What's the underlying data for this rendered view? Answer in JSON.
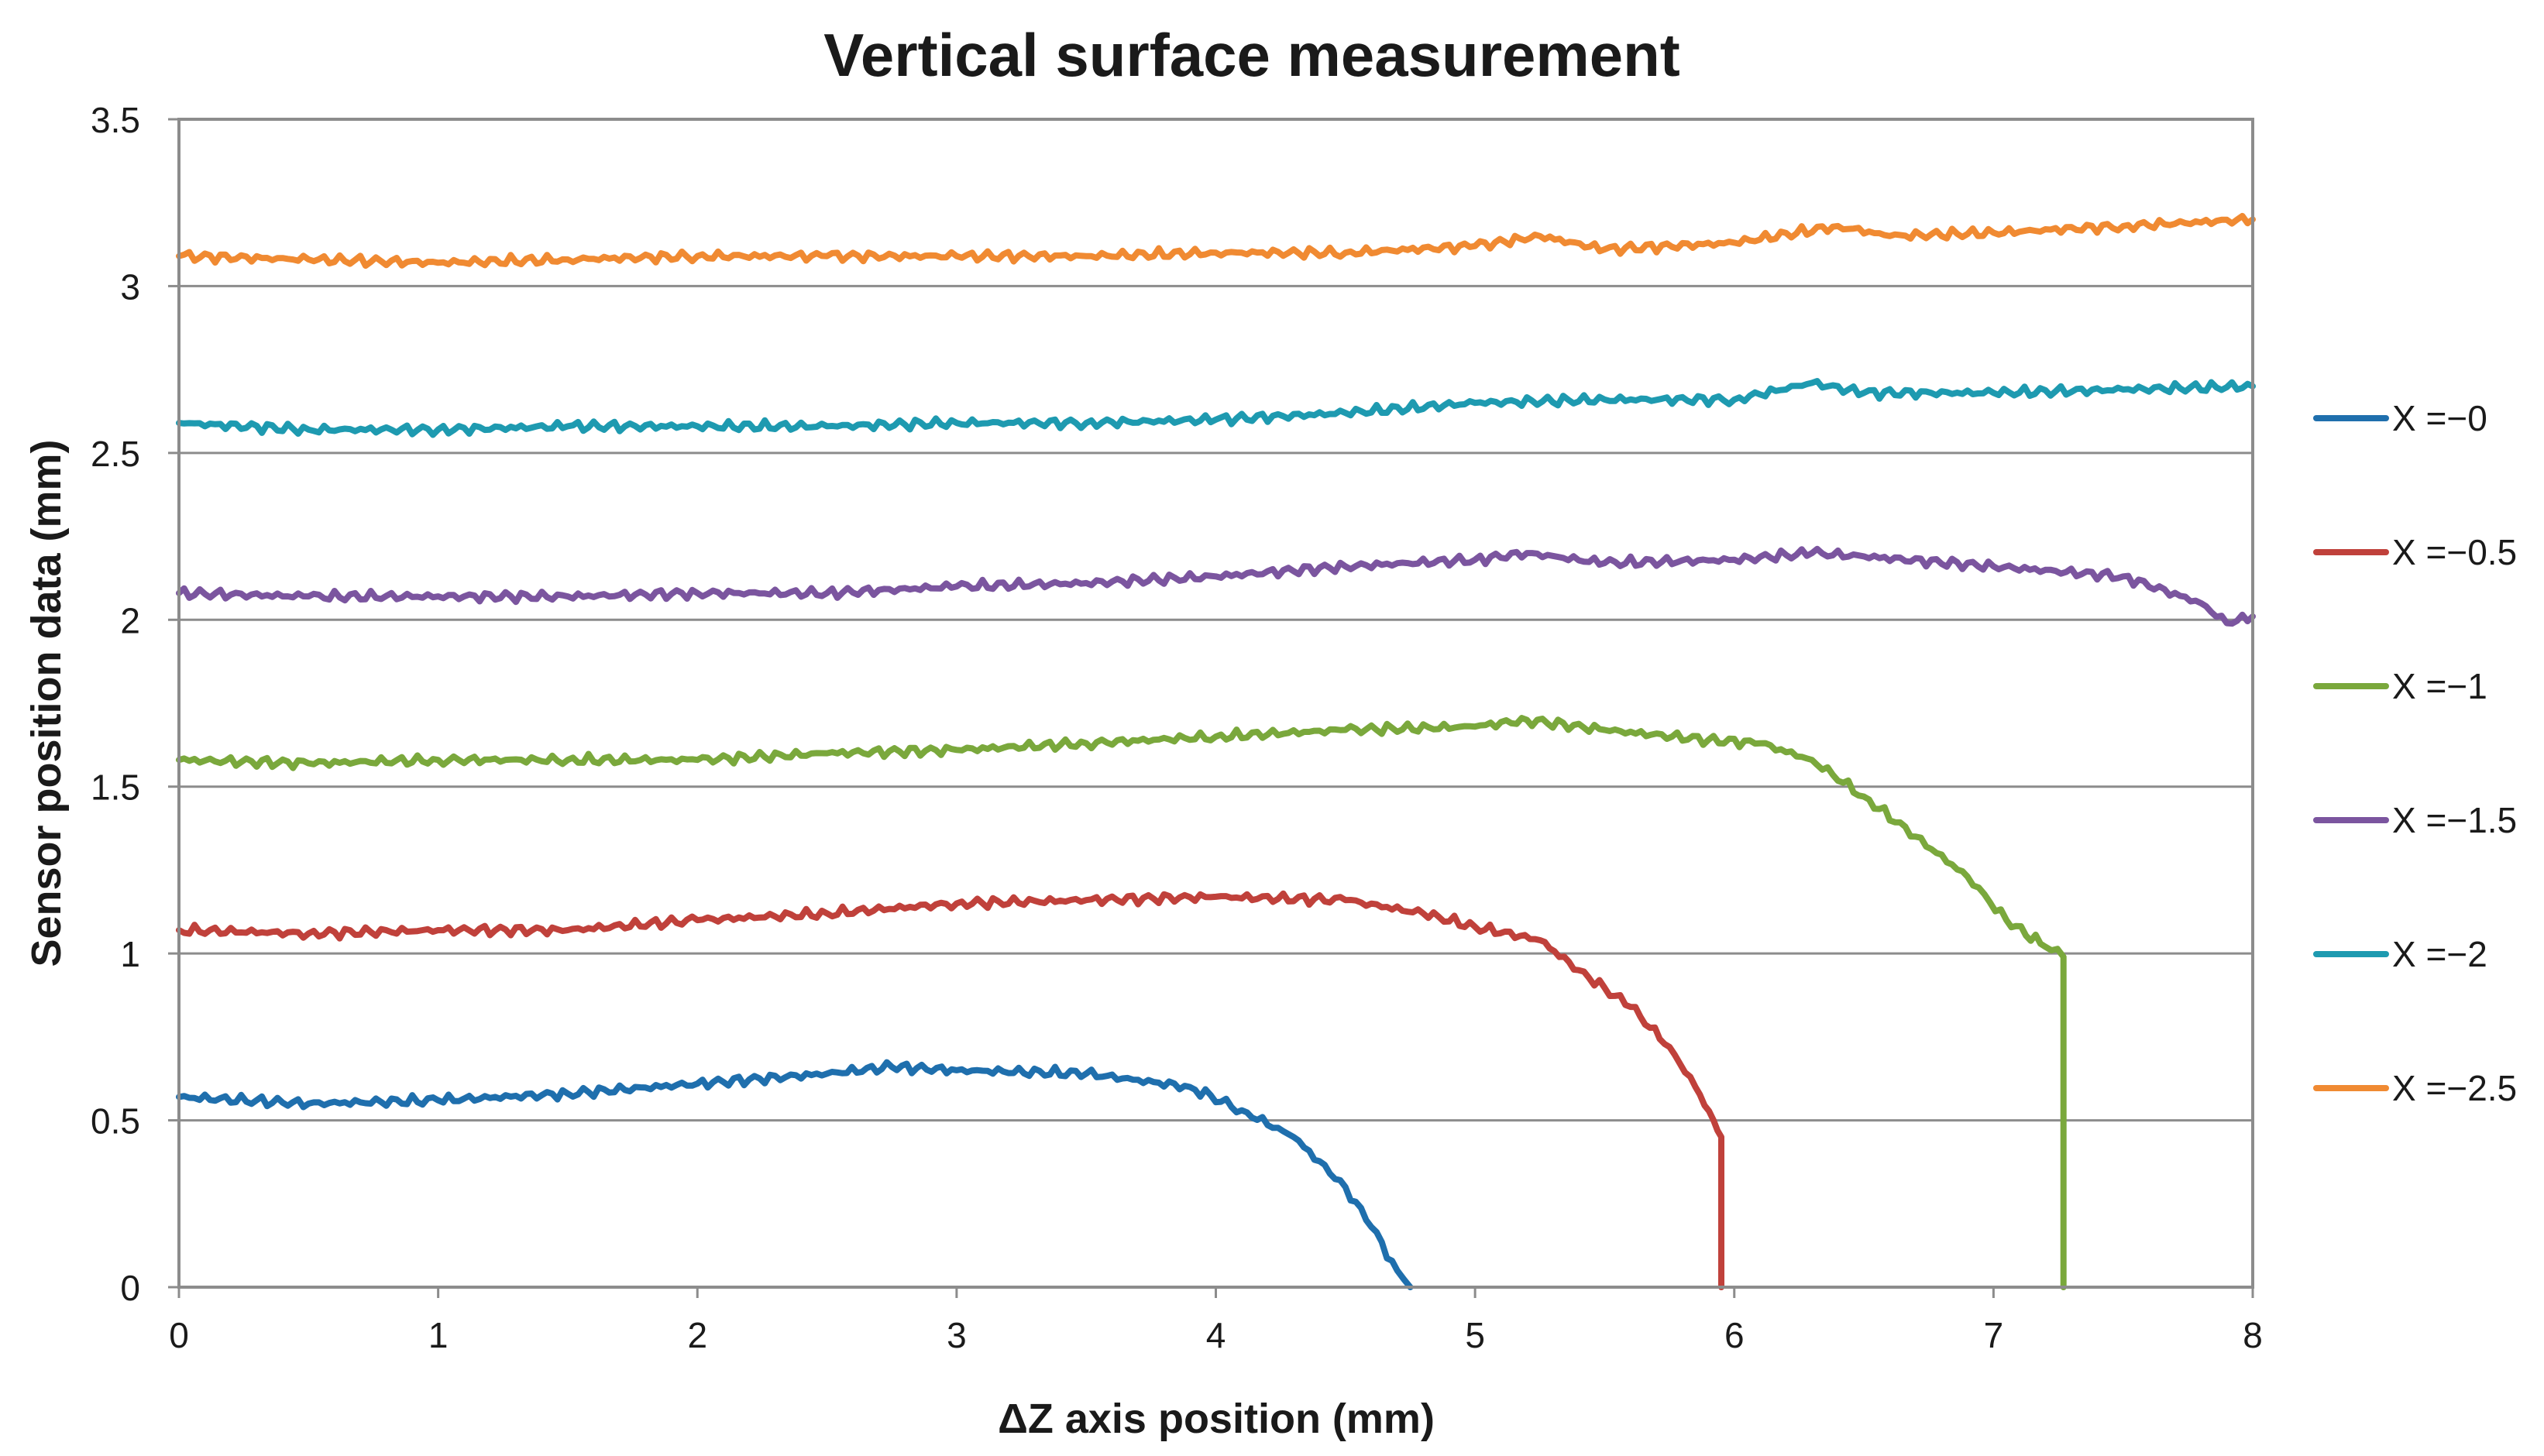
{
  "chart_data": {
    "type": "line",
    "title": "Vertical surface measurement",
    "xlabel": "ΔZ axis position (mm)",
    "ylabel": "Sensor position data (mm)",
    "xlim": [
      0,
      8
    ],
    "ylim": [
      0,
      3.5
    ],
    "x_ticks": [
      "0",
      "1",
      "2",
      "3",
      "4",
      "5",
      "6",
      "7",
      "8"
    ],
    "y_ticks": [
      "0",
      "0.5",
      "1",
      "1.5",
      "2",
      "2.5",
      "3",
      "3.5"
    ],
    "grid": "horizontal",
    "legend_position": "right",
    "series": [
      {
        "name": "X =−0",
        "color": "#1f6fad",
        "points": [
          [
            0,
            0.57
          ],
          [
            0.5,
            0.55
          ],
          [
            1,
            0.56
          ],
          [
            1.5,
            0.58
          ],
          [
            2,
            0.61
          ],
          [
            2.5,
            0.64
          ],
          [
            2.75,
            0.66
          ],
          [
            3,
            0.65
          ],
          [
            3.5,
            0.64
          ],
          [
            3.9,
            0.6
          ],
          [
            4.1,
            0.53
          ],
          [
            4.3,
            0.45
          ],
          [
            4.5,
            0.3
          ],
          [
            4.6,
            0.18
          ],
          [
            4.7,
            0.05
          ],
          [
            4.75,
            0
          ]
        ]
      },
      {
        "name": "X =−0.5",
        "color": "#c0413b",
        "points": [
          [
            0,
            1.07
          ],
          [
            0.5,
            1.06
          ],
          [
            1,
            1.07
          ],
          [
            1.5,
            1.07
          ],
          [
            2,
            1.1
          ],
          [
            2.5,
            1.12
          ],
          [
            3,
            1.15
          ],
          [
            3.5,
            1.16
          ],
          [
            4,
            1.17
          ],
          [
            4.5,
            1.16
          ],
          [
            4.8,
            1.12
          ],
          [
            5,
            1.08
          ],
          [
            5.25,
            1.04
          ],
          [
            5.4,
            0.95
          ],
          [
            5.6,
            0.84
          ],
          [
            5.75,
            0.72
          ],
          [
            5.85,
            0.6
          ],
          [
            5.92,
            0.5
          ],
          [
            5.95,
            0.45
          ],
          [
            5.95,
            0
          ]
        ]
      },
      {
        "name": "X =−1",
        "color": "#7aa83c",
        "points": [
          [
            0,
            1.58
          ],
          [
            0.5,
            1.57
          ],
          [
            1,
            1.58
          ],
          [
            1.5,
            1.58
          ],
          [
            2,
            1.58
          ],
          [
            2.5,
            1.6
          ],
          [
            3,
            1.61
          ],
          [
            3.5,
            1.63
          ],
          [
            4,
            1.65
          ],
          [
            4.5,
            1.67
          ],
          [
            5,
            1.68
          ],
          [
            5.2,
            1.7
          ],
          [
            5.5,
            1.67
          ],
          [
            5.9,
            1.64
          ],
          [
            6.1,
            1.63
          ],
          [
            6.3,
            1.58
          ],
          [
            6.5,
            1.47
          ],
          [
            6.7,
            1.35
          ],
          [
            6.9,
            1.23
          ],
          [
            7.05,
            1.1
          ],
          [
            7.2,
            1.02
          ],
          [
            7.27,
            0.99
          ],
          [
            7.27,
            0
          ]
        ]
      },
      {
        "name": "X =−1.5",
        "color": "#7b559f",
        "points": [
          [
            0,
            2.08
          ],
          [
            0.5,
            2.07
          ],
          [
            1,
            2.07
          ],
          [
            1.5,
            2.07
          ],
          [
            2,
            2.08
          ],
          [
            2.5,
            2.08
          ],
          [
            3,
            2.1
          ],
          [
            3.5,
            2.11
          ],
          [
            4,
            2.13
          ],
          [
            4.5,
            2.16
          ],
          [
            5,
            2.18
          ],
          [
            5.2,
            2.2
          ],
          [
            5.5,
            2.17
          ],
          [
            6,
            2.18
          ],
          [
            6.3,
            2.2
          ],
          [
            6.5,
            2.19
          ],
          [
            7,
            2.16
          ],
          [
            7.5,
            2.13
          ],
          [
            7.8,
            2.05
          ],
          [
            7.9,
            1.99
          ],
          [
            8,
            2.01
          ]
        ]
      },
      {
        "name": "X =−2",
        "color": "#1e9ab0",
        "points": [
          [
            0,
            2.59
          ],
          [
            0.5,
            2.57
          ],
          [
            1,
            2.57
          ],
          [
            1.5,
            2.58
          ],
          [
            2,
            2.58
          ],
          [
            2.5,
            2.58
          ],
          [
            3,
            2.59
          ],
          [
            3.5,
            2.59
          ],
          [
            4,
            2.6
          ],
          [
            4.5,
            2.62
          ],
          [
            5,
            2.65
          ],
          [
            5.5,
            2.66
          ],
          [
            6,
            2.66
          ],
          [
            6.3,
            2.71
          ],
          [
            6.5,
            2.68
          ],
          [
            7,
            2.68
          ],
          [
            7.5,
            2.69
          ],
          [
            8,
            2.7
          ]
        ]
      },
      {
        "name": "X =−2.5",
        "color": "#f08a32",
        "points": [
          [
            0,
            3.09
          ],
          [
            0.5,
            3.08
          ],
          [
            1,
            3.07
          ],
          [
            1.5,
            3.08
          ],
          [
            2,
            3.09
          ],
          [
            2.5,
            3.09
          ],
          [
            3,
            3.09
          ],
          [
            3.5,
            3.09
          ],
          [
            4,
            3.1
          ],
          [
            4.5,
            3.1
          ],
          [
            5,
            3.12
          ],
          [
            5.25,
            3.15
          ],
          [
            5.5,
            3.11
          ],
          [
            6,
            3.13
          ],
          [
            6.4,
            3.18
          ],
          [
            6.6,
            3.15
          ],
          [
            7,
            3.16
          ],
          [
            7.5,
            3.18
          ],
          [
            8,
            3.2
          ]
        ]
      }
    ]
  }
}
